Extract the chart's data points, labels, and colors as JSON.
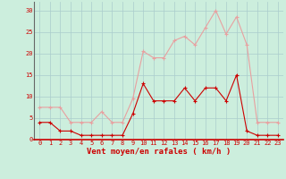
{
  "hours": [
    0,
    1,
    2,
    3,
    4,
    5,
    6,
    7,
    8,
    9,
    10,
    11,
    12,
    13,
    14,
    15,
    16,
    17,
    18,
    19,
    20,
    21,
    22,
    23
  ],
  "wind_mean": [
    4,
    4,
    2,
    2,
    1,
    1,
    1,
    1,
    1,
    6,
    13,
    9,
    9,
    9,
    12,
    9,
    12,
    12,
    9,
    15,
    2,
    1,
    1,
    1
  ],
  "wind_gusts": [
    7.5,
    7.5,
    7.5,
    4,
    4,
    4,
    6.5,
    4,
    4,
    9.5,
    20.5,
    19,
    19,
    23,
    24,
    22,
    26,
    30,
    24.5,
    28.5,
    22,
    4,
    4,
    4
  ],
  "color_mean": "#cc0000",
  "color_gusts": "#e8a0a0",
  "bg_color": "#cceedd",
  "grid_color": "#aacccc",
  "xlabel": "Vent moyen/en rafales ( km/h )",
  "ylim": [
    0,
    32
  ],
  "yticks": [
    0,
    5,
    10,
    15,
    20,
    25,
    30
  ],
  "xlim_min": -0.5,
  "xlim_max": 23.5,
  "tick_color": "#cc0000",
  "label_color": "#cc0000",
  "tick_fontsize": 5,
  "label_fontsize": 6.5
}
